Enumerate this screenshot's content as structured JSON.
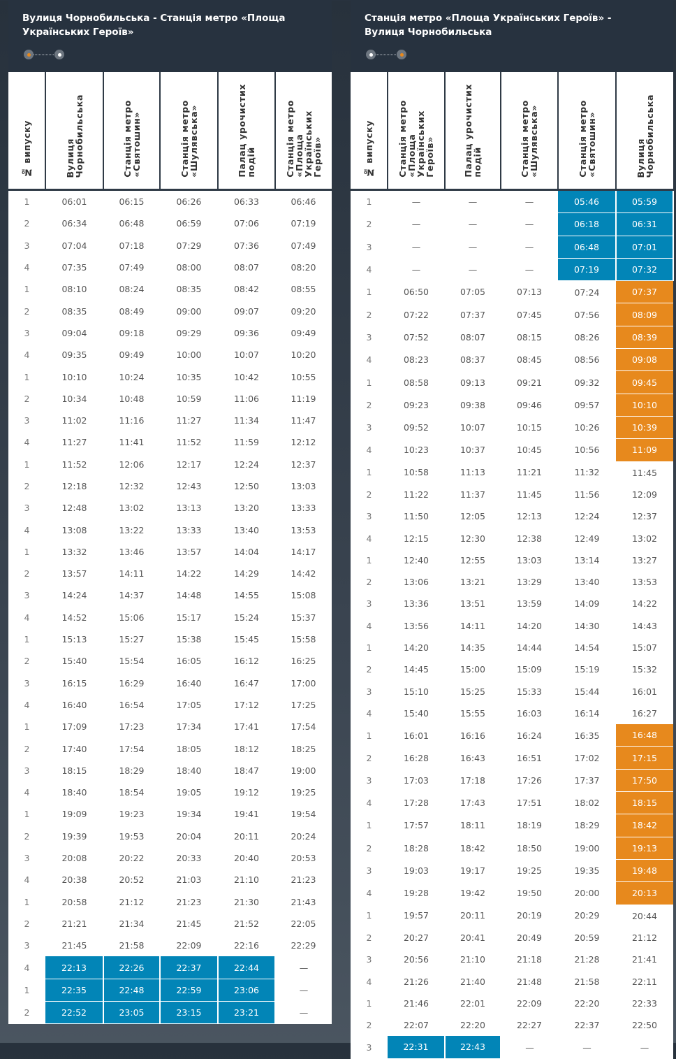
{
  "colors": {
    "blue": "#0285b7",
    "orange": "#e7891d",
    "header_bg": "#27323f"
  },
  "tables": [
    {
      "title": "Вулиця Чорнобильська - Станція метро «Площа Українських Героїв»",
      "direction_icon": "route-dots-icon",
      "active_dot": "start",
      "columns": [
        "№ випуску",
        "Вулиця\nЧорнобильська",
        "Станція метро\n«Святошин»",
        "Станція метро\n«Шулявська»",
        "Палац урочистих\nподій",
        "Станція метро\n«Площа\nУкраїнських\nГероїв»"
      ],
      "rows": [
        {
          "n": "1",
          "t": [
            "06:01",
            "06:15",
            "06:26",
            "06:33",
            "06:46"
          ],
          "h": "....."
        },
        {
          "n": "2",
          "t": [
            "06:34",
            "06:48",
            "06:59",
            "07:06",
            "07:19"
          ],
          "h": "....."
        },
        {
          "n": "3",
          "t": [
            "07:04",
            "07:18",
            "07:29",
            "07:36",
            "07:49"
          ],
          "h": "....."
        },
        {
          "n": "4",
          "t": [
            "07:35",
            "07:49",
            "08:00",
            "08:07",
            "08:20"
          ],
          "h": "....."
        },
        {
          "n": "1",
          "t": [
            "08:10",
            "08:24",
            "08:35",
            "08:42",
            "08:55"
          ],
          "h": "....."
        },
        {
          "n": "2",
          "t": [
            "08:35",
            "08:49",
            "09:00",
            "09:07",
            "09:20"
          ],
          "h": "....."
        },
        {
          "n": "3",
          "t": [
            "09:04",
            "09:18",
            "09:29",
            "09:36",
            "09:49"
          ],
          "h": "....."
        },
        {
          "n": "4",
          "t": [
            "09:35",
            "09:49",
            "10:00",
            "10:07",
            "10:20"
          ],
          "h": "....."
        },
        {
          "n": "1",
          "t": [
            "10:10",
            "10:24",
            "10:35",
            "10:42",
            "10:55"
          ],
          "h": "....."
        },
        {
          "n": "2",
          "t": [
            "10:34",
            "10:48",
            "10:59",
            "11:06",
            "11:19"
          ],
          "h": "....."
        },
        {
          "n": "3",
          "t": [
            "11:02",
            "11:16",
            "11:27",
            "11:34",
            "11:47"
          ],
          "h": "....."
        },
        {
          "n": "4",
          "t": [
            "11:27",
            "11:41",
            "11:52",
            "11:59",
            "12:12"
          ],
          "h": "....."
        },
        {
          "n": "1",
          "t": [
            "11:52",
            "12:06",
            "12:17",
            "12:24",
            "12:37"
          ],
          "h": "....."
        },
        {
          "n": "2",
          "t": [
            "12:18",
            "12:32",
            "12:43",
            "12:50",
            "13:03"
          ],
          "h": "....."
        },
        {
          "n": "3",
          "t": [
            "12:48",
            "13:02",
            "13:13",
            "13:20",
            "13:33"
          ],
          "h": "....."
        },
        {
          "n": "4",
          "t": [
            "13:08",
            "13:22",
            "13:33",
            "13:40",
            "13:53"
          ],
          "h": "....."
        },
        {
          "n": "1",
          "t": [
            "13:32",
            "13:46",
            "13:57",
            "14:04",
            "14:17"
          ],
          "h": "....."
        },
        {
          "n": "2",
          "t": [
            "13:57",
            "14:11",
            "14:22",
            "14:29",
            "14:42"
          ],
          "h": "....."
        },
        {
          "n": "3",
          "t": [
            "14:24",
            "14:37",
            "14:48",
            "14:55",
            "15:08"
          ],
          "h": "....."
        },
        {
          "n": "4",
          "t": [
            "14:52",
            "15:06",
            "15:17",
            "15:24",
            "15:37"
          ],
          "h": "....."
        },
        {
          "n": "1",
          "t": [
            "15:13",
            "15:27",
            "15:38",
            "15:45",
            "15:58"
          ],
          "h": "....."
        },
        {
          "n": "2",
          "t": [
            "15:40",
            "15:54",
            "16:05",
            "16:12",
            "16:25"
          ],
          "h": "....."
        },
        {
          "n": "3",
          "t": [
            "16:15",
            "16:29",
            "16:40",
            "16:47",
            "17:00"
          ],
          "h": "....."
        },
        {
          "n": "4",
          "t": [
            "16:40",
            "16:54",
            "17:05",
            "17:12",
            "17:25"
          ],
          "h": "....."
        },
        {
          "n": "1",
          "t": [
            "17:09",
            "17:23",
            "17:34",
            "17:41",
            "17:54"
          ],
          "h": "....."
        },
        {
          "n": "2",
          "t": [
            "17:40",
            "17:54",
            "18:05",
            "18:12",
            "18:25"
          ],
          "h": "....."
        },
        {
          "n": "3",
          "t": [
            "18:15",
            "18:29",
            "18:40",
            "18:47",
            "19:00"
          ],
          "h": "....."
        },
        {
          "n": "4",
          "t": [
            "18:40",
            "18:54",
            "19:05",
            "19:12",
            "19:25"
          ],
          "h": "....."
        },
        {
          "n": "1",
          "t": [
            "19:09",
            "19:23",
            "19:34",
            "19:41",
            "19:54"
          ],
          "h": "....."
        },
        {
          "n": "2",
          "t": [
            "19:39",
            "19:53",
            "20:04",
            "20:11",
            "20:24"
          ],
          "h": "....."
        },
        {
          "n": "3",
          "t": [
            "20:08",
            "20:22",
            "20:33",
            "20:40",
            "20:53"
          ],
          "h": "....."
        },
        {
          "n": "4",
          "t": [
            "20:38",
            "20:52",
            "21:03",
            "21:10",
            "21:23"
          ],
          "h": "....."
        },
        {
          "n": "1",
          "t": [
            "20:58",
            "21:12",
            "21:23",
            "21:30",
            "21:43"
          ],
          "h": "....."
        },
        {
          "n": "2",
          "t": [
            "21:21",
            "21:34",
            "21:45",
            "21:52",
            "22:05"
          ],
          "h": "....."
        },
        {
          "n": "3",
          "t": [
            "21:45",
            "21:58",
            "22:09",
            "22:16",
            "22:29"
          ],
          "h": "....."
        },
        {
          "n": "4",
          "t": [
            "22:13",
            "22:26",
            "22:37",
            "22:44",
            "—"
          ],
          "h": "bbbb."
        },
        {
          "n": "1",
          "t": [
            "22:35",
            "22:48",
            "22:59",
            "23:06",
            "—"
          ],
          "h": "bbbb."
        },
        {
          "n": "2",
          "t": [
            "22:52",
            "23:05",
            "23:15",
            "23:21",
            "—"
          ],
          "h": "bbbb."
        }
      ]
    },
    {
      "title": "Станція метро «Площа Українських Героїв» - Вулиця Чорнобильська",
      "direction_icon": "route-dots-icon",
      "active_dot": "end",
      "columns": [
        "№ випуску",
        "Станція метро\n«Площа\nУкраїнських\nГероїв»",
        "Палац урочистих\nподій",
        "Станція метро\n«Шулявська»",
        "Станція метро\n«Святошин»",
        "Вулиця\nЧорнобильська"
      ],
      "rows": [
        {
          "n": "1",
          "t": [
            "—",
            "—",
            "—",
            "05:46",
            "05:59"
          ],
          "h": "...bb"
        },
        {
          "n": "2",
          "t": [
            "—",
            "—",
            "—",
            "06:18",
            "06:31"
          ],
          "h": "...bb"
        },
        {
          "n": "3",
          "t": [
            "—",
            "—",
            "—",
            "06:48",
            "07:01"
          ],
          "h": "...bb"
        },
        {
          "n": "4",
          "t": [
            "—",
            "—",
            "—",
            "07:19",
            "07:32"
          ],
          "h": "...bb"
        },
        {
          "n": "1",
          "t": [
            "06:50",
            "07:05",
            "07:13",
            "07:24",
            "07:37"
          ],
          "h": "....o"
        },
        {
          "n": "2",
          "t": [
            "07:22",
            "07:37",
            "07:45",
            "07:56",
            "08:09"
          ],
          "h": "....o"
        },
        {
          "n": "3",
          "t": [
            "07:52",
            "08:07",
            "08:15",
            "08:26",
            "08:39"
          ],
          "h": "....o"
        },
        {
          "n": "4",
          "t": [
            "08:23",
            "08:37",
            "08:45",
            "08:56",
            "09:08"
          ],
          "h": "....o"
        },
        {
          "n": "1",
          "t": [
            "08:58",
            "09:13",
            "09:21",
            "09:32",
            "09:45"
          ],
          "h": "....o"
        },
        {
          "n": "2",
          "t": [
            "09:23",
            "09:38",
            "09:46",
            "09:57",
            "10:10"
          ],
          "h": "....o"
        },
        {
          "n": "3",
          "t": [
            "09:52",
            "10:07",
            "10:15",
            "10:26",
            "10:39"
          ],
          "h": "....o"
        },
        {
          "n": "4",
          "t": [
            "10:23",
            "10:37",
            "10:45",
            "10:56",
            "11:09"
          ],
          "h": "....o"
        },
        {
          "n": "1",
          "t": [
            "10:58",
            "11:13",
            "11:21",
            "11:32",
            "11:45"
          ],
          "h": "....."
        },
        {
          "n": "2",
          "t": [
            "11:22",
            "11:37",
            "11:45",
            "11:56",
            "12:09"
          ],
          "h": "....."
        },
        {
          "n": "3",
          "t": [
            "11:50",
            "12:05",
            "12:13",
            "12:24",
            "12:37"
          ],
          "h": "....."
        },
        {
          "n": "4",
          "t": [
            "12:15",
            "12:30",
            "12:38",
            "12:49",
            "13:02"
          ],
          "h": "....."
        },
        {
          "n": "1",
          "t": [
            "12:40",
            "12:55",
            "13:03",
            "13:14",
            "13:27"
          ],
          "h": "....."
        },
        {
          "n": "2",
          "t": [
            "13:06",
            "13:21",
            "13:29",
            "13:40",
            "13:53"
          ],
          "h": "....."
        },
        {
          "n": "3",
          "t": [
            "13:36",
            "13:51",
            "13:59",
            "14:09",
            "14:22"
          ],
          "h": "....."
        },
        {
          "n": "4",
          "t": [
            "13:56",
            "14:11",
            "14:20",
            "14:30",
            "14:43"
          ],
          "h": "....."
        },
        {
          "n": "1",
          "t": [
            "14:20",
            "14:35",
            "14:44",
            "14:54",
            "15:07"
          ],
          "h": "....."
        },
        {
          "n": "2",
          "t": [
            "14:45",
            "15:00",
            "15:09",
            "15:19",
            "15:32"
          ],
          "h": "....."
        },
        {
          "n": "3",
          "t": [
            "15:10",
            "15:25",
            "15:33",
            "15:44",
            "16:01"
          ],
          "h": "....."
        },
        {
          "n": "4",
          "t": [
            "15:40",
            "15:55",
            "16:03",
            "16:14",
            "16:27"
          ],
          "h": "....."
        },
        {
          "n": "1",
          "t": [
            "16:01",
            "16:16",
            "16:24",
            "16:35",
            "16:48"
          ],
          "h": "....o"
        },
        {
          "n": "2",
          "t": [
            "16:28",
            "16:43",
            "16:51",
            "17:02",
            "17:15"
          ],
          "h": "....o"
        },
        {
          "n": "3",
          "t": [
            "17:03",
            "17:18",
            "17:26",
            "17:37",
            "17:50"
          ],
          "h": "....o"
        },
        {
          "n": "4",
          "t": [
            "17:28",
            "17:43",
            "17:51",
            "18:02",
            "18:15"
          ],
          "h": "....o"
        },
        {
          "n": "1",
          "t": [
            "17:57",
            "18:11",
            "18:19",
            "18:29",
            "18:42"
          ],
          "h": "....o"
        },
        {
          "n": "2",
          "t": [
            "18:28",
            "18:42",
            "18:50",
            "19:00",
            "19:13"
          ],
          "h": "....o"
        },
        {
          "n": "3",
          "t": [
            "19:03",
            "19:17",
            "19:25",
            "19:35",
            "19:48"
          ],
          "h": "....o"
        },
        {
          "n": "4",
          "t": [
            "19:28",
            "19:42",
            "19:50",
            "20:00",
            "20:13"
          ],
          "h": "....o"
        },
        {
          "n": "1",
          "t": [
            "19:57",
            "20:11",
            "20:19",
            "20:29",
            "20:44"
          ],
          "h": "....."
        },
        {
          "n": "2",
          "t": [
            "20:27",
            "20:41",
            "20:49",
            "20:59",
            "21:12"
          ],
          "h": "....."
        },
        {
          "n": "3",
          "t": [
            "20:56",
            "21:10",
            "21:18",
            "21:28",
            "21:41"
          ],
          "h": "....."
        },
        {
          "n": "4",
          "t": [
            "21:26",
            "21:40",
            "21:48",
            "21:58",
            "22:11"
          ],
          "h": "....."
        },
        {
          "n": "1",
          "t": [
            "21:46",
            "22:01",
            "22:09",
            "22:20",
            "22:33"
          ],
          "h": "....."
        },
        {
          "n": "2",
          "t": [
            "22:07",
            "22:20",
            "22:27",
            "22:37",
            "22:50"
          ],
          "h": "....."
        },
        {
          "n": "3",
          "t": [
            "22:31",
            "22:43",
            "—",
            "—",
            "—"
          ],
          "h": "bb..."
        }
      ]
    }
  ]
}
